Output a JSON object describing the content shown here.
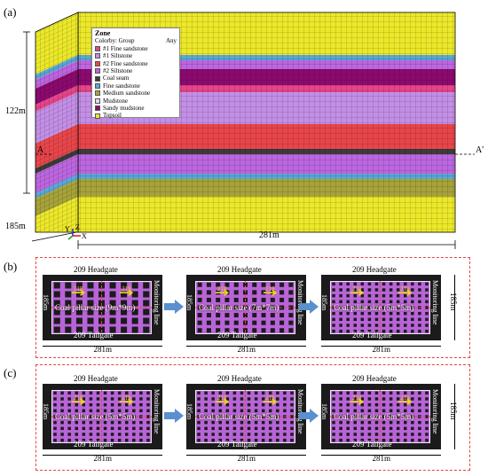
{
  "panel_a": {
    "label": "(a)",
    "height_label": "122m",
    "depth_label": "185m",
    "width_label": "281m",
    "section_left": "A",
    "section_right": "A'",
    "axes": {
      "x": "X",
      "y": "Y",
      "z": "Z"
    },
    "legend": {
      "title": "Zone",
      "colorby": "Colorby: Group",
      "any": "Any",
      "items": [
        {
          "label": "#1 Fine sandstone",
          "color": "#e6458a"
        },
        {
          "label": "#1 Siltstone",
          "color": "#c38fe6"
        },
        {
          "label": "#2 Fine sandstone",
          "color": "#e8454a"
        },
        {
          "label": "#2 Siltstone",
          "color": "#bc66e0"
        },
        {
          "label": "Coal seam",
          "color": "#3c3c3c"
        },
        {
          "label": "Fine sandstone",
          "color": "#59a7d6"
        },
        {
          "label": "Medium sandstone",
          "color": "#a7a33a"
        },
        {
          "label": "Mudstone",
          "color": "#e6d9f1"
        },
        {
          "label": "Sandy mudstone",
          "color": "#8b0a6e"
        },
        {
          "label": "Topsoil",
          "color": "#ece82a"
        }
      ]
    }
  },
  "panel_b": {
    "label": "(b)",
    "panels": [
      {
        "headgate": "209 Headgate",
        "tailgate": "209 Tailgate",
        "width": "281m",
        "height": "185m",
        "pillar": "Coal pillar size (9m*9m)",
        "monitor": "Monitoring line",
        "marks": [
          "218",
          "219"
        ]
      },
      {
        "headgate": "209 Headgate",
        "tailgate": "209 Tailgate",
        "width": "281m",
        "height": "185m",
        "pillar": "Coal pillar size (7m*7m)",
        "monitor": "Monitoring line",
        "marks": [
          "218",
          "219"
        ]
      },
      {
        "headgate": "209 Headgate",
        "tailgate": "209 Tailgate",
        "width": "281m",
        "height": "185m",
        "pillar": "Coal pillar size (5m*5m)",
        "monitor": "Monitoring line",
        "marks": [
          "218",
          "219"
        ]
      }
    ]
  },
  "panel_c": {
    "label": "(c)",
    "panels": [
      {
        "headgate": "209 Headgate",
        "tailgate": "209 Tailgate",
        "width": "281m",
        "height": "185m",
        "pillar": "Coal pillar size (5m*5m)",
        "monitor": "Monitoring line",
        "marks": [
          "218",
          "219"
        ]
      },
      {
        "headgate": "209 Headgate",
        "tailgate": "209 Tailgate",
        "width": "281m",
        "height": "185m",
        "pillar": "Coal pillar size (5m*5m)",
        "monitor": "Monitoring line",
        "marks": [
          "218",
          "219"
        ]
      },
      {
        "headgate": "209 Headgate",
        "tailgate": "209 Tailgate",
        "width": "281m",
        "height": "185m",
        "pillar": "Coal pillar size (5m*5m)",
        "monitor": "Monitoring line",
        "marks": [
          "218",
          "219"
        ]
      }
    ]
  }
}
